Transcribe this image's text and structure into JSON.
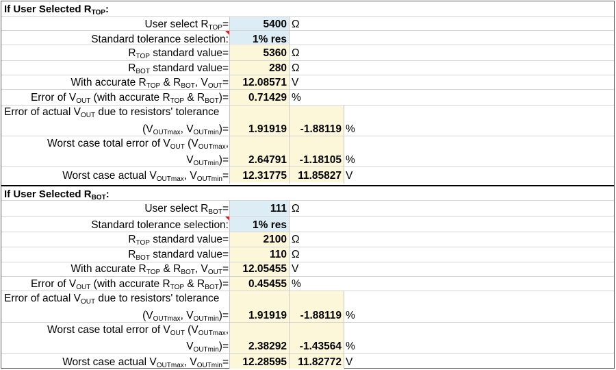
{
  "units": {
    "ohm": "Ω",
    "volt": "V",
    "percent": "%"
  },
  "top": {
    "title_main": "If User Selected R",
    "title_sub": "TOP",
    "title_end": ":",
    "user_select": {
      "pre": "User select R",
      "sub": "TOP",
      "post": "=",
      "value": "5400"
    },
    "tolerance": {
      "label": "Standard tolerance selection:",
      "value": "1% res"
    },
    "rtop_std": {
      "pre": "R",
      "sub": "TOP",
      "post": " standard value=",
      "value": "5360"
    },
    "rbot_std": {
      "pre": "R",
      "sub": "BOT",
      "post": " standard value=",
      "value": "280"
    },
    "accurate_vout": {
      "a": "With accurate R",
      "as": "TOP",
      "b": " & R",
      "bs": "BOT",
      "c": ", V",
      "cs": "OUT",
      "d": "=",
      "value": "12.08571"
    },
    "error_vout": {
      "a": "Error of V",
      "as": "OUT",
      "b": " (with accurate R",
      "bs": "TOP",
      "c": " & R",
      "cs": "BOT",
      "d": ")=",
      "value": "0.71429"
    },
    "tol_error": {
      "l1a": "Error of actual V",
      "l1s": "OUT",
      "l1b": " due to resistors' tolerance",
      "l2a": "(V",
      "l2s": "OUTmax",
      "l2b": ", V",
      "l2s2": "OUTmin",
      "l2c": ")=",
      "value1": "1.91919",
      "value2": "-1.88119"
    },
    "worst_total": {
      "l1a": "Worst case total error of V",
      "l1s": "OUT",
      "l1b": " (V",
      "l1s2": "OUTmax",
      "l1c": ",",
      "l2a": "V",
      "l2s": "OUTmin",
      "l2b": ")=",
      "value1": "2.64791",
      "value2": "-1.18105"
    },
    "worst_actual": {
      "a": "Worst case actual V",
      "as": "OUTmax",
      "b": ", V",
      "bs": "OUTmin",
      "c": "=",
      "value1": "12.31775",
      "value2": "11.85827"
    }
  },
  "bottom": {
    "title_main": "If User Selected R",
    "title_sub": "BOT",
    "title_end": ":",
    "user_select": {
      "pre": "User select R",
      "sub": "BOT",
      "post": "=",
      "value": "111"
    },
    "tolerance": {
      "label": "Standard tolerance selection:",
      "value": "1% res"
    },
    "rtop_std": {
      "pre": "R",
      "sub": "TOP",
      "post": " standard value=",
      "value": "2100"
    },
    "rbot_std": {
      "pre": "R",
      "sub": "BOT",
      "post": " standard value=",
      "value": "110"
    },
    "accurate_vout": {
      "a": "With accurate R",
      "as": "TOP",
      "b": " & R",
      "bs": "BOT",
      "c": ", V",
      "cs": "OUT",
      "d": "=",
      "value": "12.05455"
    },
    "error_vout": {
      "a": "Error of V",
      "as": "OUT",
      "b": " (with accurate R",
      "bs": "TOP",
      "c": " & R",
      "cs": "BOT",
      "d": ")=",
      "value": "0.45455"
    },
    "tol_error": {
      "l1a": "Error of actual V",
      "l1s": "OUT",
      "l1b": " due to resistors' tolerance",
      "l2a": "(V",
      "l2s": "OUTmax",
      "l2b": ", V",
      "l2s2": "OUTmin",
      "l2c": ")=",
      "value1": "1.91919",
      "value2": "-1.88119"
    },
    "worst_total": {
      "l1a": "Worst case total error of V",
      "l1s": "OUT",
      "l1b": " (V",
      "l1s2": "OUTmax",
      "l1c": ",",
      "l2a": "V",
      "l2s": "OUTmin",
      "l2b": ")=",
      "value1": "2.38292",
      "value2": "-1.43564"
    },
    "worst_actual": {
      "a": "Worst case actual V",
      "as": "OUTmax",
      "b": ", V",
      "bs": "OUTmin",
      "c": "=",
      "value1": "12.28595",
      "value2": "11.82772"
    }
  }
}
